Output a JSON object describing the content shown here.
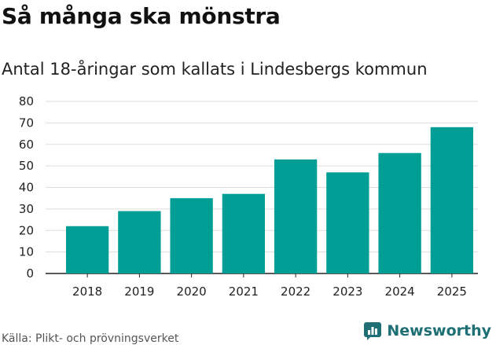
{
  "title": "Så många ska mönstra",
  "subtitle": "Antal 18-åringar som kallats i Lindesbergs kommun",
  "source": "Källa: Plikt- och prövningsverket",
  "brand": "Newsworthy",
  "colors": {
    "bar": "#009e94",
    "grid": "#dddddd",
    "axis": "#222222",
    "brand": "#1d6f73"
  },
  "chart_data": {
    "type": "bar",
    "title": "Så många ska mönstra",
    "subtitle": "Antal 18-åringar som kallats i Lindesbergs kommun",
    "categories": [
      "2018",
      "2019",
      "2020",
      "2021",
      "2022",
      "2023",
      "2024",
      "2025"
    ],
    "values": [
      22,
      29,
      35,
      37,
      53,
      47,
      56,
      68
    ],
    "ylim": [
      0,
      80
    ],
    "yticks": [
      0,
      10,
      20,
      30,
      40,
      50,
      60,
      70,
      80
    ],
    "xlabel": "",
    "ylabel": "",
    "grid": true
  }
}
